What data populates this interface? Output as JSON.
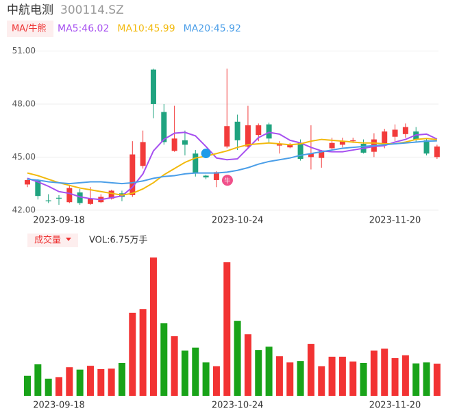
{
  "header": {
    "name": "中航电测",
    "code": "300114.SZ"
  },
  "chart_data": [
    {
      "type": "candlestick",
      "legend_button": "MA/牛熊",
      "categories": [
        null,
        null,
        null,
        "2023-09-18",
        null,
        null,
        null,
        null,
        null,
        null,
        null,
        null,
        null,
        null,
        null,
        null,
        null,
        null,
        null,
        null,
        "2023-10-24",
        null,
        null,
        null,
        null,
        null,
        null,
        null,
        null,
        null,
        null,
        null,
        null,
        null,
        null,
        "2023-11-20",
        null,
        null,
        null,
        null
      ],
      "open": [
        43.45,
        43.7,
        42.55,
        42.7,
        42.45,
        43.0,
        42.35,
        42.45,
        42.65,
        42.95,
        42.85,
        44.5,
        49.95,
        47.55,
        45.35,
        45.95,
        45.2,
        43.95,
        43.7,
        45.6,
        47.0,
        45.6,
        46.25,
        46.85,
        45.65,
        45.55,
        45.8,
        45.0,
        44.95,
        45.5,
        45.7,
        45.9,
        45.75,
        45.3,
        45.75,
        46.15,
        46.3,
        46.45,
        45.95,
        45.0
      ],
      "high": [
        43.8,
        43.75,
        42.9,
        42.85,
        43.4,
        43.2,
        43.3,
        42.9,
        43.15,
        43.1,
        45.9,
        46.5,
        50.0,
        48.0,
        47.9,
        46.5,
        45.4,
        44.0,
        44.2,
        50.0,
        47.4,
        47.9,
        46.9,
        46.95,
        45.9,
        45.8,
        46.0,
        46.8,
        45.4,
        46.1,
        46.1,
        46.1,
        46.0,
        46.35,
        46.6,
        46.85,
        46.9,
        46.7,
        46.05,
        45.7
      ],
      "low": [
        43.3,
        42.6,
        42.4,
        42.3,
        42.4,
        42.3,
        42.3,
        42.4,
        42.6,
        42.5,
        42.75,
        44.35,
        47.2,
        45.7,
        45.3,
        45.1,
        43.9,
        43.75,
        43.3,
        45.5,
        45.4,
        45.5,
        45.9,
        45.8,
        45.2,
        45.5,
        44.8,
        44.3,
        44.4,
        45.4,
        45.55,
        45.8,
        45.2,
        45.0,
        45.5,
        45.9,
        46.1,
        45.85,
        45.1,
        44.9
      ],
      "close": [
        43.7,
        42.8,
        42.5,
        42.65,
        43.25,
        42.4,
        42.65,
        42.75,
        43.1,
        42.75,
        45.15,
        45.85,
        48.0,
        45.85,
        46.05,
        45.7,
        44.1,
        43.85,
        44.15,
        46.75,
        45.95,
        46.8,
        46.8,
        46.05,
        45.75,
        45.7,
        44.9,
        45.2,
        45.35,
        45.8,
        45.9,
        45.95,
        45.25,
        46.0,
        46.45,
        46.55,
        46.7,
        46.0,
        45.2,
        45.6
      ],
      "up_color": "#f23b3b",
      "down_color": "#1fa37f",
      "series": [
        {
          "name": "MA5:46.02",
          "color": "#a64ff0",
          "values": [
            43.8,
            43.6,
            43.35,
            43.05,
            42.95,
            42.75,
            42.65,
            42.6,
            42.7,
            42.8,
            43.3,
            44.05,
            45.35,
            46.0,
            46.35,
            46.4,
            46.2,
            45.6,
            44.95,
            44.85,
            44.9,
            45.5,
            46.1,
            46.4,
            46.3,
            45.95,
            45.8,
            45.55,
            45.35,
            45.3,
            45.3,
            45.4,
            45.5,
            45.6,
            45.65,
            45.85,
            46.0,
            46.25,
            46.3,
            46.02
          ]
        },
        {
          "name": "MA10:45.99",
          "color": "#f2b90c",
          "values": [
            44.1,
            43.95,
            43.75,
            43.55,
            43.4,
            43.25,
            43.15,
            43.05,
            42.95,
            42.85,
            42.95,
            43.2,
            43.55,
            44.0,
            44.35,
            44.7,
            44.95,
            45.05,
            45.2,
            45.35,
            45.55,
            45.7,
            45.75,
            45.8,
            45.75,
            45.7,
            45.75,
            45.9,
            46.0,
            45.95,
            45.9,
            45.85,
            45.8,
            45.8,
            45.75,
            45.75,
            45.85,
            46.0,
            46.05,
            45.99
          ]
        },
        {
          "name": "MA20:45.92",
          "color": "#4a9ee8",
          "values": [
            43.75,
            43.7,
            43.6,
            43.55,
            43.5,
            43.55,
            43.6,
            43.6,
            43.55,
            43.5,
            43.55,
            43.65,
            43.8,
            43.9,
            43.95,
            44.05,
            44.1,
            44.1,
            44.1,
            44.15,
            44.25,
            44.4,
            44.6,
            44.75,
            44.85,
            44.95,
            45.1,
            45.2,
            45.3,
            45.4,
            45.5,
            45.55,
            45.6,
            45.65,
            45.7,
            45.75,
            45.8,
            45.85,
            45.9,
            45.92
          ]
        }
      ],
      "annotation": "牛",
      "ylim": [
        41.8,
        51.6
      ],
      "yticks": [
        {
          "value": 42,
          "label": "42.00"
        },
        {
          "value": 45,
          "label": "45.00"
        },
        {
          "value": 48,
          "label": "48.00"
        },
        {
          "value": 51,
          "label": "51.00"
        }
      ],
      "grid": true
    },
    {
      "type": "bar",
      "title": "成交量",
      "vol_label": "VOL:6.75万手",
      "categories": [
        null,
        null,
        null,
        "2023-09-18",
        null,
        null,
        null,
        null,
        null,
        null,
        null,
        null,
        null,
        null,
        null,
        null,
        null,
        null,
        null,
        null,
        "2023-10-24",
        null,
        null,
        null,
        null,
        null,
        null,
        null,
        null,
        null,
        null,
        null,
        null,
        null,
        null,
        "2023-11-20",
        null,
        null,
        null,
        null
      ],
      "values": [
        4.2,
        6.6,
        3.6,
        3.9,
        6.0,
        5.5,
        6.3,
        5.6,
        5.7,
        6.9,
        17.4,
        18.2,
        29.0,
        15.2,
        12.5,
        9.5,
        10.1,
        7.0,
        6.2,
        28.0,
        15.7,
        12.9,
        9.6,
        10.3,
        8.3,
        7.0,
        7.3,
        10.9,
        6.2,
        8.2,
        8.2,
        7.2,
        6.9,
        9.5,
        9.9,
        7.9,
        8.5,
        6.8,
        7.0,
        6.75
      ],
      "colors": [
        "#19a319",
        "#19a319",
        "#19a319",
        "#f23333",
        "#f23333",
        "#19a319",
        "#f23333",
        "#f23333",
        "#f23333",
        "#19a319",
        "#f23333",
        "#f23333",
        "#f23333",
        "#19a319",
        "#f23333",
        "#19a319",
        "#19a319",
        "#19a319",
        "#f23333",
        "#f23333",
        "#19a319",
        "#f23333",
        "#19a319",
        "#19a319",
        "#f23333",
        "#f23333",
        "#19a319",
        "#f23333",
        "#f23333",
        "#f23333",
        "#f23333",
        "#f23333",
        "#19a319",
        "#f23333",
        "#f23333",
        "#f23333",
        "#f23333",
        "#19a319",
        "#19a319",
        "#f23333"
      ],
      "ylim": [
        0,
        29
      ]
    }
  ]
}
